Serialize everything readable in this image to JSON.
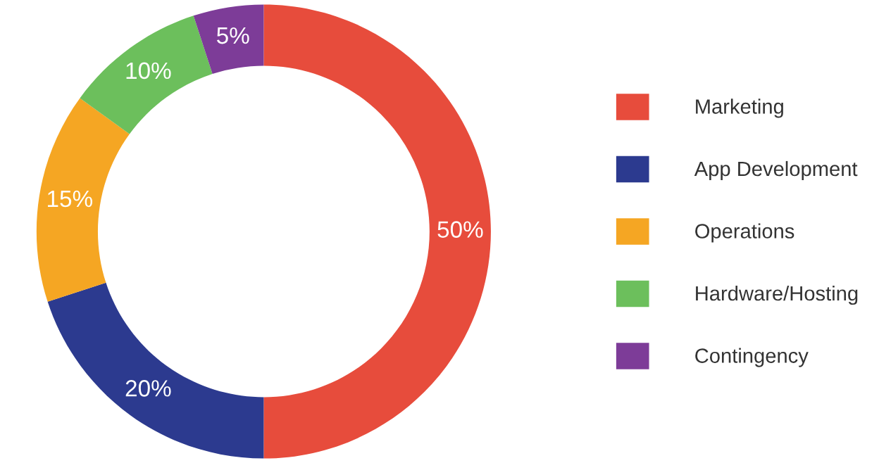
{
  "chart_data": {
    "type": "donut",
    "categories": [
      "Marketing",
      "App Development",
      "Operations",
      "Hardware/Hosting",
      "Contingency"
    ],
    "values": [
      50,
      20,
      15,
      10,
      5
    ],
    "colors": [
      "#e74c3c",
      "#2c3a8f",
      "#f5a623",
      "#6cbf5c",
      "#7d3c98"
    ],
    "value_labels": [
      "50%",
      "20%",
      "15%",
      "10%",
      "5%"
    ],
    "legend": "right"
  }
}
